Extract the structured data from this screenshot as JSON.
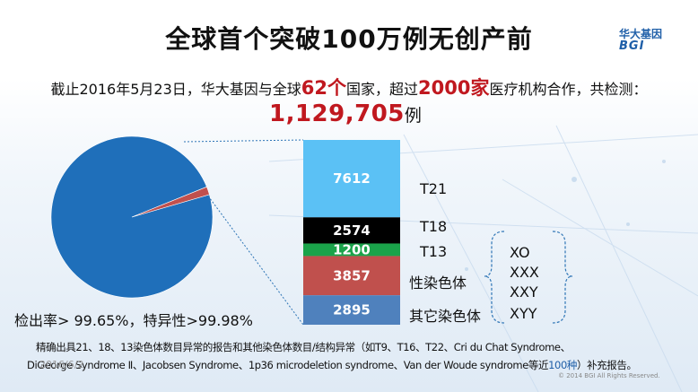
{
  "header": {
    "title": "全球首个突破100万例无创产前",
    "logo_cn": "华大基因",
    "logo_en": "BGI"
  },
  "summary": {
    "prefix": "截止2016年5月23日，华大基因与全球",
    "countries": "62个",
    "middle": "国家，超过",
    "institutions": "2000家",
    "suffix": "医疗机构合作，共检测：",
    "total": "1,129,705",
    "total_unit": "例"
  },
  "detection_rate": "检出率> 99.65%，特异性>99.98%",
  "footnote": {
    "line1": "精确出具21、18、13染色体数目异常的报告和其他染色体数目/结构异常（如T9、T16、T22、Cri du Chat Syndrome、",
    "line2_a": "DiGeorge Syndrome Ⅱ、Jacobsen Syndrome、1p36 microdeletion syndrome、Van der Woude syndrome等近",
    "line2_hl": "100种",
    "line2_b": "）补充报告。"
  },
  "date_text": "2016/6/2",
  "copyright": "© 2014 BGI All Rights Reserved.",
  "karyotypes": [
    "XO",
    "XXX",
    "XXY",
    "XYY"
  ],
  "colors": {
    "pie_main": "#1f6fba",
    "pie_slice": "#c0504d",
    "accent_red": "#c0181f",
    "connector": "#2e75b6"
  },
  "chart_data": [
    {
      "type": "pie",
      "title": "",
      "slices": [
        {
          "name": "",
          "value": 1111567
        },
        {
          "name": "",
          "value": 18138
        }
      ]
    },
    {
      "type": "bar",
      "stacked": true,
      "title": "",
      "categories": [
        "T21",
        "T18",
        "T13",
        "性染色体",
        "其它染色体"
      ],
      "values": [
        7612,
        2574,
        1200,
        3857,
        2895
      ],
      "value_labels": [
        "7612",
        "2574",
        "1200",
        "3857",
        "2895"
      ],
      "colors": [
        "#5bc1f5",
        "#000000",
        "#1aa34a",
        "#c0504d",
        "#4f81bd"
      ]
    }
  ]
}
